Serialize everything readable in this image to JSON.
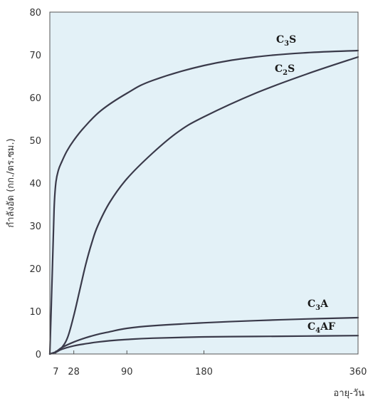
{
  "chart_data": {
    "type": "line",
    "title": "",
    "xlabel": "อายุ-วัน",
    "ylabel": "กำลังอัด (กก./ตร.ซม.)",
    "xlim": [
      0,
      360
    ],
    "ylim": [
      0,
      80
    ],
    "x_ticks": [
      7,
      28,
      90,
      180,
      360
    ],
    "y_ticks": [
      0,
      10,
      20,
      30,
      40,
      50,
      60,
      70,
      80
    ],
    "grid": false,
    "background_color": "#e3f1f7",
    "line_color": "#3a3a4a",
    "series": [
      {
        "name": "C3S",
        "label_main": "C",
        "label_sub": "3",
        "label_tail": "S",
        "x": [
          0,
          3,
          5,
          7,
          10,
          14,
          20,
          28,
          40,
          60,
          90,
          120,
          180,
          240,
          300,
          360
        ],
        "values": [
          0,
          20,
          34,
          40,
          43,
          45,
          47.5,
          50,
          53,
          57,
          61,
          64,
          67.5,
          69.5,
          70.5,
          71
        ]
      },
      {
        "name": "C2S",
        "label_main": "C",
        "label_sub": "2",
        "label_tail": "S",
        "x": [
          0,
          7,
          14,
          21,
          28,
          35,
          42,
          49,
          56,
          70,
          90,
          120,
          150,
          180,
          240,
          300,
          360
        ],
        "values": [
          0,
          0.5,
          1.5,
          4,
          9,
          15,
          21,
          26,
          30,
          35.5,
          41,
          47,
          52,
          55.5,
          61,
          65.5,
          69.5
        ]
      },
      {
        "name": "C3A",
        "label_main": "C",
        "label_sub": "3",
        "label_tail": "A",
        "x": [
          0,
          7,
          14,
          28,
          42,
          56,
          70,
          90,
          120,
          180,
          240,
          300,
          360
        ],
        "values": [
          0,
          0.5,
          1.5,
          2.8,
          3.8,
          4.6,
          5.2,
          6,
          6.6,
          7.3,
          7.8,
          8.2,
          8.5
        ]
      },
      {
        "name": "C4AF",
        "label_main": "C",
        "label_sub": "4",
        "label_tail": "AF",
        "x": [
          0,
          7,
          14,
          28,
          42,
          56,
          70,
          90,
          120,
          180,
          240,
          300,
          360
        ],
        "values": [
          0,
          0.4,
          1.1,
          1.9,
          2.4,
          2.8,
          3.1,
          3.4,
          3.7,
          4.0,
          4.1,
          4.2,
          4.3
        ]
      }
    ]
  }
}
